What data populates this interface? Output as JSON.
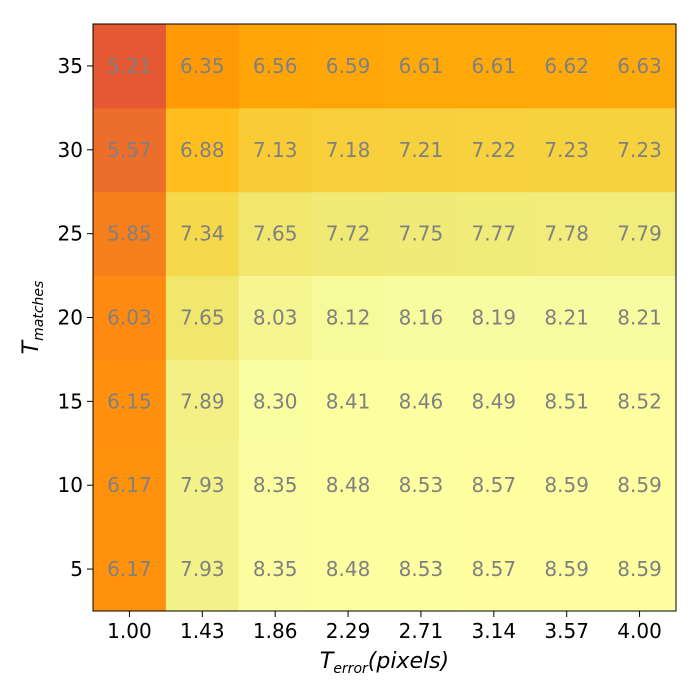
{
  "chart_data": {
    "type": "heatmap",
    "title": "",
    "x": [
      "1.00",
      "1.43",
      "1.86",
      "2.29",
      "2.71",
      "3.14",
      "3.57",
      "4.00"
    ],
    "y": [
      5,
      10,
      15,
      20,
      25,
      30,
      35
    ],
    "xlabel": {
      "main": "T",
      "sub": "error",
      "suffix": "(pixels)"
    },
    "ylabel": {
      "main": "T",
      "sub": "matches"
    },
    "values": [
      [
        6.17,
        7.93,
        8.35,
        8.48,
        8.53,
        8.57,
        8.59,
        8.59
      ],
      [
        6.17,
        7.93,
        8.35,
        8.48,
        8.53,
        8.57,
        8.59,
        8.59
      ],
      [
        6.15,
        7.89,
        8.3,
        8.41,
        8.46,
        8.49,
        8.51,
        8.52
      ],
      [
        6.03,
        7.65,
        8.03,
        8.12,
        8.16,
        8.19,
        8.21,
        8.21
      ],
      [
        5.85,
        7.34,
        7.65,
        7.72,
        7.75,
        7.77,
        7.78,
        7.79
      ],
      [
        5.57,
        6.88,
        7.13,
        7.18,
        7.21,
        7.22,
        7.23,
        7.23
      ],
      [
        5.21,
        6.35,
        6.56,
        6.59,
        6.61,
        6.61,
        6.62,
        6.63
      ]
    ],
    "colormap": "Wistia",
    "value_range": [
      5.21,
      8.59
    ],
    "grid": false,
    "legend": "none",
    "cell_label_color": "#808080"
  }
}
